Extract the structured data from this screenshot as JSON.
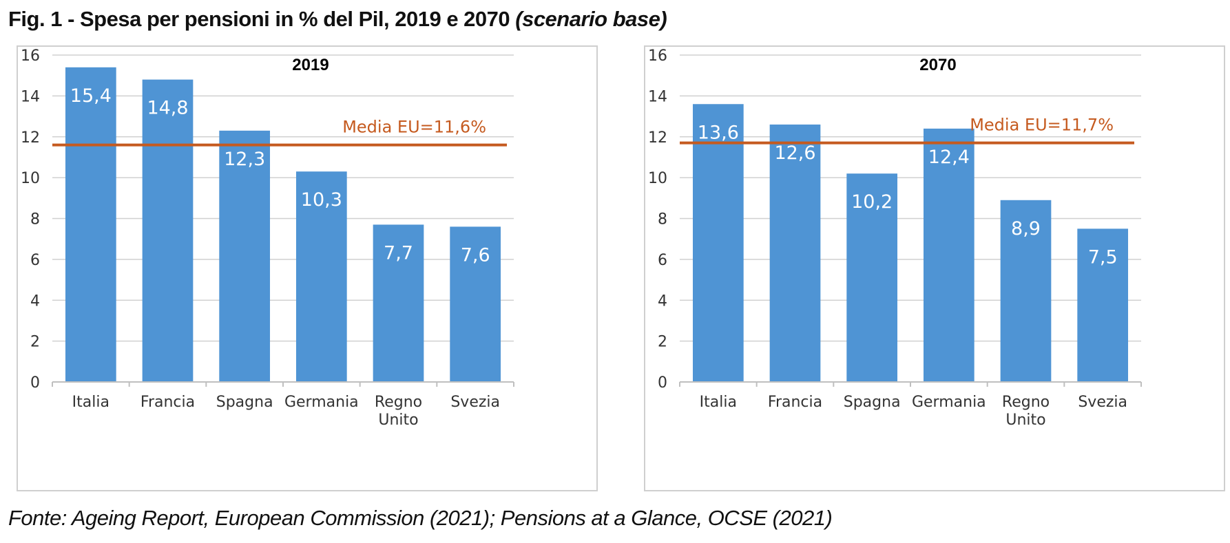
{
  "figure": {
    "title_bold": "Fig. 1 - Spesa per pensioni in % del Pil",
    "title_plain": ", 2019 e 2070 ",
    "title_italic": "(scenario base)",
    "source": "Fonte: Ageing Report, European Commission (2021); Pensions at a Glance, OCSE (2021)"
  },
  "colors": {
    "bar": "#4f94d4",
    "reference_line": "#c55a1f",
    "gridline": "#d0d0d0",
    "axis": "#bfbfbf"
  },
  "chart_data": [
    {
      "type": "bar",
      "title": "2019",
      "categories": [
        [
          "Italia"
        ],
        [
          "Francia"
        ],
        [
          "Spagna"
        ],
        [
          "Germania"
        ],
        [
          "Regno",
          "Unito"
        ],
        [
          "Svezia"
        ]
      ],
      "values": [
        15.4,
        14.8,
        12.3,
        10.3,
        7.7,
        7.6
      ],
      "value_labels": [
        "15,4",
        "14,8",
        "12,3",
        "10,3",
        "7,7",
        "7,6"
      ],
      "ylim": [
        0,
        16
      ],
      "yticks": [
        0,
        2,
        4,
        6,
        8,
        10,
        12,
        14,
        16
      ],
      "grid": true,
      "reference_line": {
        "value": 11.6,
        "label": "Media EU=11,6%"
      },
      "xlabel": "",
      "ylabel": ""
    },
    {
      "type": "bar",
      "title": "2070",
      "categories": [
        [
          "Italia"
        ],
        [
          "Francia"
        ],
        [
          "Spagna"
        ],
        [
          "Germania"
        ],
        [
          "Regno",
          "Unito"
        ],
        [
          "Svezia"
        ]
      ],
      "values": [
        13.6,
        12.6,
        10.2,
        12.4,
        8.9,
        7.5
      ],
      "value_labels": [
        "13,6",
        "12,6",
        "10,2",
        "12,4",
        "8,9",
        "7,5"
      ],
      "ylim": [
        0,
        16
      ],
      "yticks": [
        0,
        2,
        4,
        6,
        8,
        10,
        12,
        14,
        16
      ],
      "grid": true,
      "reference_line": {
        "value": 11.7,
        "label": "Media EU=11,7%"
      },
      "xlabel": "",
      "ylabel": ""
    }
  ]
}
